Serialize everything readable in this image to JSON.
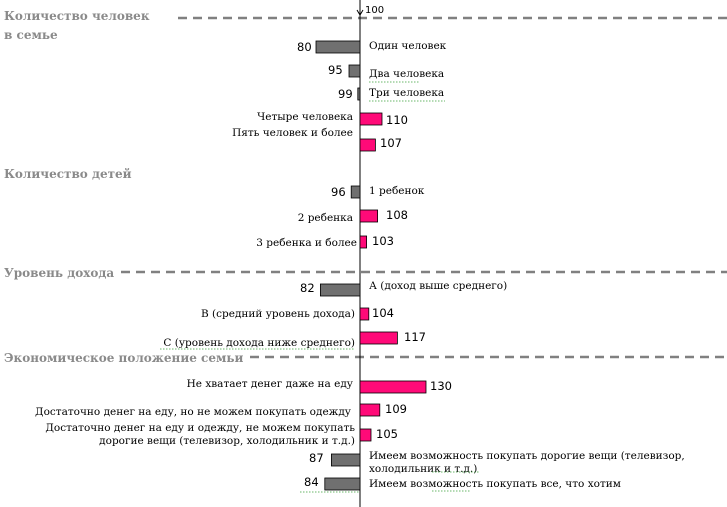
{
  "chart_data": {
    "type": "bar",
    "orientation": "horizontal",
    "baseline": 100,
    "baseline_label": "100",
    "colors": {
      "below": "#707070",
      "above": "#ff0a78",
      "section_title": "#8a8a8a",
      "divider": "#808080"
    },
    "sections": [
      {
        "title": [
          "Количество человек",
          "в семье"
        ],
        "items": [
          {
            "label": [
              "Один человек"
            ],
            "value": 80,
            "value_label": "80"
          },
          {
            "label": [
              "Два человека"
            ],
            "value": 95,
            "value_label": "95"
          },
          {
            "label": [
              "Три человека"
            ],
            "value": 99,
            "value_label": "99"
          },
          {
            "label": [
              "Четыре человека"
            ],
            "value": 110,
            "value_label": "110"
          },
          {
            "label": [
              "Пять человек и более"
            ],
            "value": 107,
            "value_label": "107"
          }
        ]
      },
      {
        "title": [
          "Количество детей"
        ],
        "items": [
          {
            "label": [
              "1 ребенок"
            ],
            "value": 96,
            "value_label": "96"
          },
          {
            "label": [
              "2 ребенка"
            ],
            "value": 108,
            "value_label": "108"
          },
          {
            "label": [
              "3 ребенка и более"
            ],
            "value": 103,
            "value_label": "103"
          }
        ]
      },
      {
        "title": [
          "Уровень дохода"
        ],
        "items": [
          {
            "label": [
              "А (доход выше среднего)"
            ],
            "value": 82,
            "value_label": "82"
          },
          {
            "label": [
              "В (средний уровень дохода)"
            ],
            "value": 104,
            "value_label": "104"
          },
          {
            "label": [
              "С (уровень дохода ниже среднего)"
            ],
            "value": 117,
            "value_label": "117"
          }
        ]
      },
      {
        "title": [
          "Экономическое положение семьи"
        ],
        "items": [
          {
            "label": [
              "Не хватает денег даже на еду"
            ],
            "value": 130,
            "value_label": "130"
          },
          {
            "label": [
              "Достаточно денег на еду, но не можем покупать одежду"
            ],
            "value": 109,
            "value_label": "109"
          },
          {
            "label": [
              "Достаточно денег на еду и одежду, не можем покупать",
              "дорогие вещи (телевизор, холодильник и т.д.)"
            ],
            "value": 105,
            "value_label": "105"
          },
          {
            "label": [
              "Имеем возможность покупать дорогие вещи (телевизор,",
              "холодильник и т.д.)"
            ],
            "value": 87,
            "value_label": "87"
          },
          {
            "label": [
              "Имеем возможность покупать все, что хотим"
            ],
            "value": 84,
            "value_label": "84"
          }
        ]
      }
    ]
  }
}
